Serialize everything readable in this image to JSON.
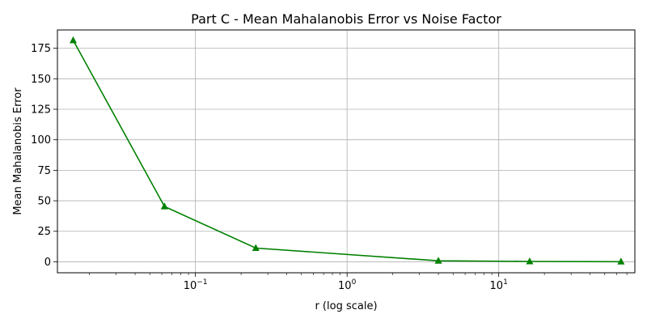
{
  "chart_data": {
    "type": "line",
    "title": "Part C - Mean Mahalanobis Error vs Noise Factor",
    "xlabel": "r (log scale)",
    "ylabel": "Mean Mahalanobis Error",
    "x_scale": "log",
    "xlim": [
      0.0123,
      79
    ],
    "ylim": [
      -9,
      190
    ],
    "x_ticks": [
      {
        "value": 0.1,
        "base": "10",
        "exp": "−1"
      },
      {
        "value": 1,
        "base": "10",
        "exp": "0"
      },
      {
        "value": 10,
        "base": "10",
        "exp": "1"
      }
    ],
    "y_ticks": [
      0,
      25,
      50,
      75,
      100,
      125,
      150,
      175
    ],
    "grid": true,
    "series": [
      {
        "color": "#008000",
        "marker": "triangle-up",
        "x": [
          0.015625,
          0.0625,
          0.25,
          4,
          16,
          64
        ],
        "y": [
          181.5,
          45.3,
          11.2,
          0.8,
          0.3,
          0.1
        ]
      }
    ]
  }
}
